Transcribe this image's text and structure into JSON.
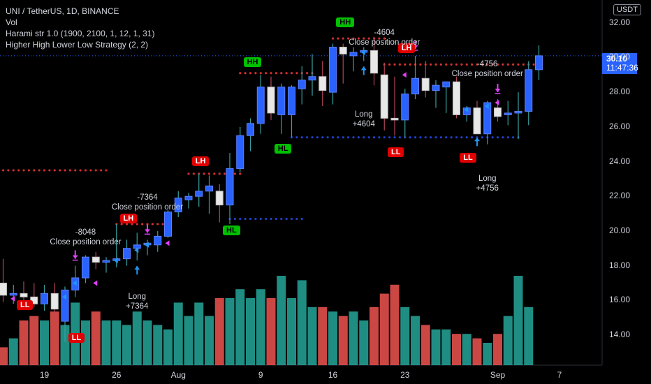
{
  "legend": {
    "symbol": "UNI / TetherUS, 1D, BINANCE",
    "vol": "Vol",
    "indicator1": "Harami str 1.0 (1900, 2100, 1, 12, 1, 31)",
    "indicator2": "Higher High Lower Low Strategy (2, 2)"
  },
  "currency_button": "USDT",
  "current_price": {
    "price": "30.10",
    "countdown": "11:47:36"
  },
  "colors": {
    "up_body": "#2962ff",
    "down_body": "#d8d8d8",
    "vol_up": "#26a69a",
    "vol_down": "#ef5350",
    "signal": "#e040fb",
    "arrow": "#2196f3"
  },
  "chart_data": {
    "type": "candlestick",
    "y_ticks": [
      "14.00",
      "16.00",
      "18.00",
      "20.00",
      "22.00",
      "24.00",
      "26.00",
      "28.00",
      "30.00",
      "32.00"
    ],
    "x_ticks": [
      "19",
      "26",
      "Aug",
      "9",
      "16",
      "23",
      "Sep",
      "7"
    ],
    "ylim": [
      12.6,
      33.0
    ],
    "candles": [
      {
        "date": "Jul 15",
        "o": 17.0,
        "h": 18.4,
        "l": 15.9,
        "c": 16.3
      },
      {
        "date": "Jul 16",
        "o": 16.3,
        "h": 16.9,
        "l": 15.8,
        "c": 16.4
      },
      {
        "date": "Jul 17",
        "o": 16.4,
        "h": 17.1,
        "l": 15.7,
        "c": 16.2
      },
      {
        "date": "Jul 18",
        "o": 16.2,
        "h": 17.0,
        "l": 15.6,
        "c": 15.8
      },
      {
        "date": "Jul 19",
        "o": 15.8,
        "h": 16.9,
        "l": 15.4,
        "c": 16.4
      },
      {
        "date": "Jul 20",
        "o": 16.4,
        "h": 17.0,
        "l": 15.3,
        "c": 15.5
      },
      {
        "date": "Jul 21",
        "o": 14.8,
        "h": 16.8,
        "l": 13.6,
        "c": 16.6
      },
      {
        "date": "Jul 22",
        "o": 16.6,
        "h": 18.0,
        "l": 16.2,
        "c": 17.3
      },
      {
        "date": "Jul 23",
        "o": 17.3,
        "h": 18.6,
        "l": 17.0,
        "c": 18.5
      },
      {
        "date": "Jul 24",
        "o": 18.5,
        "h": 18.8,
        "l": 17.8,
        "c": 18.2
      },
      {
        "date": "Jul 25",
        "o": 18.2,
        "h": 18.5,
        "l": 17.6,
        "c": 18.3
      },
      {
        "date": "Jul 26",
        "o": 18.3,
        "h": 20.4,
        "l": 17.9,
        "c": 18.4
      },
      {
        "date": "Jul 27",
        "o": 18.4,
        "h": 19.5,
        "l": 18.0,
        "c": 19.0
      },
      {
        "date": "Jul 28",
        "o": 19.0,
        "h": 19.9,
        "l": 18.3,
        "c": 19.2
      },
      {
        "date": "Jul 29",
        "o": 19.2,
        "h": 19.5,
        "l": 18.6,
        "c": 19.3
      },
      {
        "date": "Jul 30",
        "o": 19.2,
        "h": 20.0,
        "l": 18.8,
        "c": 19.7
      },
      {
        "date": "Jul 31",
        "o": 19.7,
        "h": 21.2,
        "l": 19.6,
        "c": 21.1
      },
      {
        "date": "Aug 1",
        "o": 21.1,
        "h": 22.3,
        "l": 20.8,
        "c": 21.9
      },
      {
        "date": "Aug 2",
        "o": 21.8,
        "h": 22.2,
        "l": 21.3,
        "c": 22.0
      },
      {
        "date": "Aug 3",
        "o": 22.0,
        "h": 23.3,
        "l": 21.4,
        "c": 22.3
      },
      {
        "date": "Aug 4",
        "o": 22.3,
        "h": 23.2,
        "l": 21.0,
        "c": 22.6
      },
      {
        "date": "Aug 5",
        "o": 22.3,
        "h": 22.7,
        "l": 20.5,
        "c": 21.5
      },
      {
        "date": "Aug 6",
        "o": 21.5,
        "h": 24.5,
        "l": 20.4,
        "c": 23.6
      },
      {
        "date": "Aug 7",
        "o": 23.6,
        "h": 26.0,
        "l": 23.4,
        "c": 25.5
      },
      {
        "date": "Aug 8",
        "o": 25.5,
        "h": 26.5,
        "l": 24.6,
        "c": 26.2
      },
      {
        "date": "Aug 9",
        "o": 26.2,
        "h": 29.0,
        "l": 25.6,
        "c": 28.3
      },
      {
        "date": "Aug 10",
        "o": 28.3,
        "h": 28.9,
        "l": 26.4,
        "c": 26.8
      },
      {
        "date": "Aug 11",
        "o": 26.7,
        "h": 28.5,
        "l": 25.6,
        "c": 28.3
      },
      {
        "date": "Aug 12",
        "o": 26.7,
        "h": 28.4,
        "l": 25.4,
        "c": 28.3
      },
      {
        "date": "Aug 13",
        "o": 28.2,
        "h": 29.5,
        "l": 27.3,
        "c": 28.7
      },
      {
        "date": "Aug 14",
        "o": 28.7,
        "h": 30.2,
        "l": 27.8,
        "c": 28.9
      },
      {
        "date": "Aug 15",
        "o": 28.9,
        "h": 29.8,
        "l": 27.2,
        "c": 28.1
      },
      {
        "date": "Aug 16",
        "o": 28.0,
        "h": 30.8,
        "l": 27.3,
        "c": 30.6
      },
      {
        "date": "Aug 17",
        "o": 30.6,
        "h": 30.8,
        "l": 28.5,
        "c": 30.2
      },
      {
        "date": "Aug 18",
        "o": 30.1,
        "h": 30.6,
        "l": 29.2,
        "c": 30.3
      },
      {
        "date": "Aug 19",
        "o": 30.3,
        "h": 30.6,
        "l": 29.8,
        "c": 30.4
      },
      {
        "date": "Aug 20",
        "o": 30.4,
        "h": 31.2,
        "l": 28.4,
        "c": 29.1
      },
      {
        "date": "Aug 21",
        "o": 29.0,
        "h": 29.7,
        "l": 25.8,
        "c": 26.5
      },
      {
        "date": "Aug 22",
        "o": 26.5,
        "h": 28.9,
        "l": 25.5,
        "c": 26.4
      },
      {
        "date": "Aug 23",
        "o": 26.4,
        "h": 28.2,
        "l": 25.4,
        "c": 27.9
      },
      {
        "date": "Aug 24",
        "o": 27.9,
        "h": 30.1,
        "l": 27.6,
        "c": 28.8
      },
      {
        "date": "Aug 25",
        "o": 28.8,
        "h": 29.8,
        "l": 27.7,
        "c": 28.1
      },
      {
        "date": "Aug 26",
        "o": 28.1,
        "h": 28.7,
        "l": 27.1,
        "c": 28.4
      },
      {
        "date": "Aug 27",
        "o": 28.3,
        "h": 28.6,
        "l": 26.8,
        "c": 28.6
      },
      {
        "date": "Aug 28",
        "o": 28.6,
        "h": 28.9,
        "l": 26.5,
        "c": 26.7
      },
      {
        "date": "Aug 29",
        "o": 26.7,
        "h": 27.2,
        "l": 26.3,
        "c": 27.1
      },
      {
        "date": "Aug 30",
        "o": 27.1,
        "h": 27.5,
        "l": 25.7,
        "c": 25.6
      },
      {
        "date": "Aug 31",
        "o": 25.6,
        "h": 27.5,
        "l": 25.0,
        "c": 27.4
      },
      {
        "date": "Sep 1",
        "o": 27.1,
        "h": 27.6,
        "l": 26.3,
        "c": 26.6
      },
      {
        "date": "Sep 2",
        "o": 26.7,
        "h": 27.5,
        "l": 26.1,
        "c": 26.8
      },
      {
        "date": "Sep 3",
        "o": 26.8,
        "h": 28.0,
        "l": 25.3,
        "c": 26.9
      },
      {
        "date": "Sep 4",
        "o": 26.9,
        "h": 29.8,
        "l": 26.1,
        "c": 29.3
      },
      {
        "date": "Sep 5",
        "o": 29.3,
        "h": 30.7,
        "l": 28.7,
        "c": 30.1
      }
    ],
    "volume_relative": [
      0.2,
      0.3,
      0.5,
      0.55,
      0.5,
      0.6,
      0.45,
      0.7,
      0.5,
      0.6,
      0.5,
      0.5,
      0.45,
      0.6,
      0.5,
      0.45,
      0.4,
      0.7,
      0.55,
      0.7,
      0.55,
      0.75,
      0.75,
      0.85,
      0.75,
      0.85,
      0.75,
      1.0,
      0.75,
      0.95,
      0.65,
      0.65,
      0.6,
      0.55,
      0.6,
      0.5,
      0.65,
      0.8,
      0.9,
      0.65,
      0.55,
      0.45,
      0.4,
      0.4,
      0.35,
      0.35,
      0.3,
      0.25,
      0.35,
      0.55,
      1.0,
      0.65
    ],
    "hh_ll_levels": [
      {
        "color": "red",
        "value": 23.5,
        "from": -9,
        "to": 10
      },
      {
        "color": "red",
        "value": 20.4,
        "from": 11,
        "to": 16
      },
      {
        "color": "red",
        "value": 23.3,
        "from": 18,
        "to": 23
      },
      {
        "color": "red",
        "value": 29.1,
        "from": 23,
        "to": 30
      },
      {
        "color": "red",
        "value": 31.1,
        "from": 32,
        "to": 37
      },
      {
        "color": "red",
        "value": 29.6,
        "from": 37,
        "to": 52
      },
      {
        "color": "blue",
        "value": 20.7,
        "from": 22,
        "to": 29
      },
      {
        "color": "blue",
        "value": 25.4,
        "from": 28,
        "to": 50
      }
    ],
    "labels": [
      {
        "text": "HH",
        "kind": "up",
        "idx": 24,
        "value": 29.7
      },
      {
        "text": "HH",
        "kind": "up",
        "idx": 33,
        "value": 32.0
      },
      {
        "text": "HL",
        "kind": "up",
        "idx": 27,
        "value": 24.7
      },
      {
        "text": "HL",
        "kind": "up",
        "idx": 22,
        "value": 20.0
      },
      {
        "text": "LH",
        "kind": "down",
        "idx": 19,
        "value": 24.0
      },
      {
        "text": "LH",
        "kind": "down",
        "idx": 12,
        "value": 20.7
      },
      {
        "text": "LH",
        "kind": "down",
        "idx": 39,
        "value": 30.5
      },
      {
        "text": "LL",
        "kind": "down",
        "idx": 38,
        "value": 24.5
      },
      {
        "text": "LL",
        "kind": "down",
        "idx": 45,
        "value": 24.2
      },
      {
        "text": "LL",
        "kind": "down",
        "idx": 2,
        "value": 15.7
      },
      {
        "text": "LL",
        "kind": "down",
        "idx": 7,
        "value": 13.8
      }
    ],
    "annotations": [
      {
        "lines": [
          "-8048",
          "Close position order"
        ],
        "idx": 8,
        "value": 20.2
      },
      {
        "lines": [
          "-7364",
          "Close position order"
        ],
        "idx": 14,
        "value": 22.2
      },
      {
        "lines": [
          "Long",
          "+7364"
        ],
        "idx": 13,
        "value": 16.5
      },
      {
        "lines": [
          "-4604",
          "Close position order"
        ],
        "idx": 37,
        "value": 31.7
      },
      {
        "lines": [
          "Long",
          "+4604"
        ],
        "idx": 35,
        "value": 27.0
      },
      {
        "lines": [
          "-4756",
          "Close position order"
        ],
        "idx": 47,
        "value": 29.9
      },
      {
        "lines": [
          "Long",
          "+4756"
        ],
        "idx": 47,
        "value": 23.3
      }
    ],
    "long_arrows": [
      13,
      35,
      46
    ],
    "close_arrows": [
      7,
      14,
      40,
      48
    ],
    "markers": [
      {
        "idx": 6,
        "value": 16.2,
        "color": "blue"
      },
      {
        "idx": 7,
        "value": 17.0,
        "color": "blue"
      },
      {
        "idx": 11,
        "value": 18.3,
        "color": "blue"
      },
      {
        "idx": 13,
        "value": 18.9,
        "color": "blue"
      },
      {
        "idx": 14,
        "value": 19.2,
        "color": "blue"
      },
      {
        "idx": 35,
        "value": 30.3,
        "color": "blue"
      },
      {
        "idx": 45,
        "value": 27.0,
        "color": "blue"
      },
      {
        "idx": 47,
        "value": 27.2,
        "color": "blue"
      },
      {
        "idx": 9,
        "value": 17.0,
        "color": "magenta"
      },
      {
        "idx": 16,
        "value": 19.3,
        "color": "magenta"
      },
      {
        "idx": 39,
        "value": 29.0,
        "color": "magenta"
      },
      {
        "idx": 48,
        "value": 27.4,
        "color": "magenta"
      },
      {
        "idx": 1,
        "value": 16.1,
        "color": "magenta"
      }
    ]
  }
}
